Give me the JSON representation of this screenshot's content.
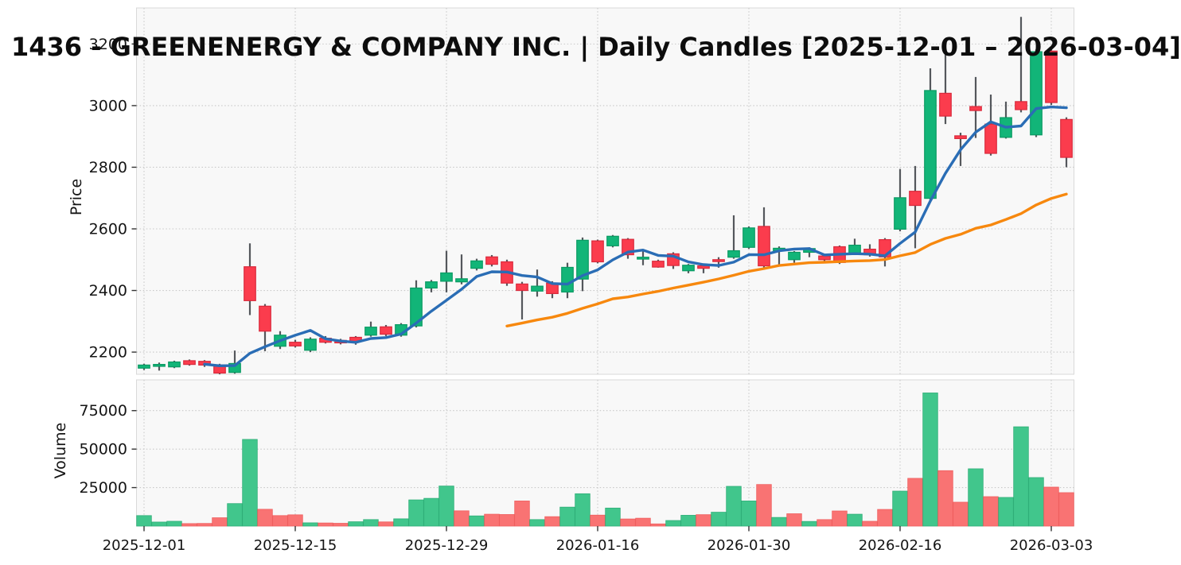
{
  "title": "1436 - GREENENERGY & COMPANY INC. | Daily Candles [2025-12-01 – 2026-03-04]",
  "colors": {
    "plot_bg": "#f8f8f8",
    "grid": "#c8c8c8",
    "spine": "#d9d9d9",
    "wick": "#54575c",
    "candle_up": "#12b578",
    "candle_up_edge": "#0a9a63",
    "candle_down": "#fb3c4d",
    "candle_down_edge": "#d92a3c",
    "volume_up": "#41c68c",
    "volume_up_edge": "#2fae78",
    "volume_down": "#f97373",
    "volume_down_edge": "#ef5f5f",
    "ma_short": "#2a6db5",
    "ma_long": "#f7880e",
    "tick_text": "#141414",
    "tick_mark": "#333333"
  },
  "chart_data": {
    "type": "candlestick",
    "symbol": "1436",
    "company": "GREENENERGY & COMPANY INC.",
    "period": {
      "start": "2025-12-01",
      "end": "2026-03-04",
      "interval": "daily"
    },
    "grid": true,
    "price_axis": {
      "label": "Price",
      "ticks": [
        2200,
        2400,
        2600,
        2800,
        3000,
        3200
      ],
      "ylim": [
        2128,
        3317
      ]
    },
    "volume_axis": {
      "label": "Volume",
      "ticks": [
        25000,
        50000,
        75000
      ],
      "ylim": [
        0,
        95000
      ]
    },
    "x_ticks": [
      {
        "index": 0,
        "label": "2025-12-01"
      },
      {
        "index": 10,
        "label": "2025-12-15"
      },
      {
        "index": 20,
        "label": "2025-12-29"
      },
      {
        "index": 30,
        "label": "2026-01-16"
      },
      {
        "index": 40,
        "label": "2026-01-30"
      },
      {
        "index": 50,
        "label": "2026-02-16"
      },
      {
        "index": 60,
        "label": "2026-03-03"
      }
    ],
    "overlays": [
      {
        "name": "SMA(5)",
        "type": "sma",
        "window": 5,
        "color_key": "ma_short"
      },
      {
        "name": "SMA(25)",
        "type": "sma",
        "window": 25,
        "color_key": "ma_long"
      }
    ],
    "x": [
      "2025-12-01",
      "2025-12-02",
      "2025-12-03",
      "2025-12-04",
      "2025-12-05",
      "2025-12-08",
      "2025-12-09",
      "2025-12-10",
      "2025-12-11",
      "2025-12-12",
      "2025-12-15",
      "2025-12-16",
      "2025-12-17",
      "2025-12-18",
      "2025-12-19",
      "2025-12-22",
      "2025-12-23",
      "2025-12-24",
      "2025-12-25",
      "2025-12-26",
      "2025-12-29",
      "2025-12-30",
      "2026-01-05",
      "2026-01-06",
      "2026-01-07",
      "2026-01-08",
      "2026-01-09",
      "2026-01-13",
      "2026-01-14",
      "2026-01-15",
      "2026-01-16",
      "2026-01-19",
      "2026-01-20",
      "2026-01-21",
      "2026-01-22",
      "2026-01-23",
      "2026-01-26",
      "2026-01-27",
      "2026-01-28",
      "2026-01-29",
      "2026-01-30",
      "2026-02-02",
      "2026-02-03",
      "2026-02-04",
      "2026-02-05",
      "2026-02-06",
      "2026-02-09",
      "2026-02-10",
      "2026-02-12",
      "2026-02-13",
      "2026-02-16",
      "2026-02-17",
      "2026-02-18",
      "2026-02-19",
      "2026-02-20",
      "2026-02-24",
      "2026-02-25",
      "2026-02-26",
      "2026-02-27",
      "2026-03-02",
      "2026-03-03",
      "2026-03-04"
    ],
    "ohlc": {
      "open": [
        2148,
        2155,
        2152,
        2172,
        2170,
        2158,
        2134,
        2477,
        2349,
        2219,
        2232,
        2206,
        2245,
        2238,
        2248,
        2255,
        2282,
        2255,
        2285,
        2408,
        2430,
        2428,
        2472,
        2509,
        2493,
        2421,
        2398,
        2424,
        2395,
        2437,
        2561,
        2545,
        2566,
        2503,
        2495,
        2519,
        2464,
        2480,
        2500,
        2508,
        2540,
        2608,
        2529,
        2500,
        2524,
        2512,
        2542,
        2521,
        2534,
        2565,
        2599,
        2722,
        2699,
        3040,
        2902,
        2997,
        2940,
        2897,
        3013,
        2905,
        3177,
        2955
      ],
      "high": [
        2162,
        2166,
        2172,
        2176,
        2174,
        2162,
        2205,
        2553,
        2356,
        2268,
        2240,
        2248,
        2252,
        2243,
        2252,
        2299,
        2288,
        2294,
        2433,
        2434,
        2529,
        2517,
        2503,
        2515,
        2500,
        2428,
        2468,
        2430,
        2490,
        2572,
        2565,
        2580,
        2570,
        2527,
        2500,
        2524,
        2486,
        2484,
        2508,
        2644,
        2608,
        2670,
        2543,
        2528,
        2540,
        2516,
        2546,
        2568,
        2550,
        2570,
        2794,
        2804,
        3121,
        3185,
        2912,
        3093,
        3036,
        3013,
        3288,
        3182,
        3190,
        2962
      ],
      "low": [
        2142,
        2140,
        2148,
        2156,
        2152,
        2128,
        2130,
        2320,
        2203,
        2210,
        2215,
        2200,
        2228,
        2225,
        2224,
        2250,
        2252,
        2250,
        2280,
        2394,
        2394,
        2420,
        2465,
        2478,
        2415,
        2306,
        2380,
        2375,
        2375,
        2398,
        2488,
        2540,
        2503,
        2482,
        2474,
        2470,
        2456,
        2456,
        2474,
        2503,
        2535,
        2469,
        2482,
        2490,
        2508,
        2488,
        2486,
        2516,
        2510,
        2478,
        2592,
        2537,
        2690,
        2940,
        2804,
        2895,
        2838,
        2893,
        2978,
        2898,
        3002,
        2800
      ],
      "close": [
        2158,
        2160,
        2168,
        2160,
        2158,
        2132,
        2163,
        2367,
        2268,
        2255,
        2220,
        2242,
        2232,
        2230,
        2235,
        2281,
        2258,
        2289,
        2408,
        2428,
        2457,
        2438,
        2496,
        2485,
        2424,
        2400,
        2414,
        2390,
        2475,
        2563,
        2493,
        2576,
        2516,
        2508,
        2476,
        2481,
        2482,
        2472,
        2495,
        2529,
        2603,
        2480,
        2537,
        2524,
        2536,
        2500,
        2491,
        2547,
        2516,
        2509,
        2701,
        2676,
        3049,
        2966,
        2893,
        2984,
        2845,
        2961,
        2987,
        3175,
        3010,
        2832
      ]
    },
    "volume": [
      6800,
      2600,
      3100,
      1600,
      1700,
      5400,
      14600,
      56300,
      10900,
      6800,
      7300,
      2100,
      2000,
      1800,
      2800,
      4200,
      2700,
      4700,
      17000,
      18000,
      26000,
      9900,
      6600,
      7700,
      7500,
      16300,
      4200,
      6100,
      12300,
      21000,
      7100,
      11700,
      4600,
      5100,
      1400,
      3600,
      7000,
      7400,
      9000,
      25800,
      16300,
      27000,
      5600,
      8000,
      3000,
      4200,
      9800,
      7700,
      3100,
      10800,
      22700,
      31000,
      86500,
      36000,
      15500,
      37200,
      19100,
      18600,
      64500,
      31500,
      25300,
      21700
    ]
  }
}
